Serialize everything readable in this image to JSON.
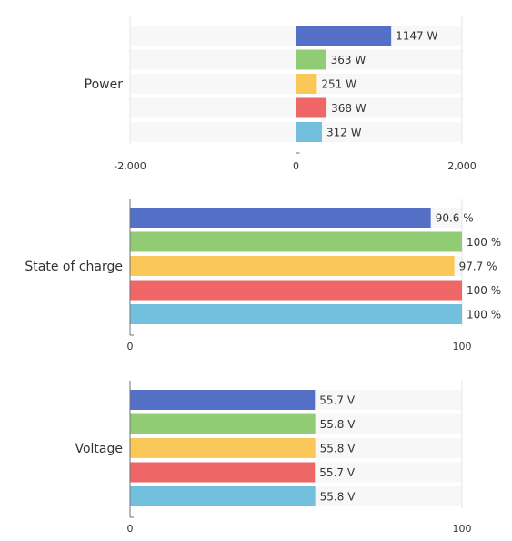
{
  "chart_data": [
    {
      "type": "bar",
      "orientation": "horizontal",
      "category": "Power",
      "unit": "W",
      "values": [
        1147,
        363,
        251,
        368,
        312
      ],
      "labels": [
        "1147 W",
        "363 W",
        "251 W",
        "368 W",
        "312 W"
      ],
      "xlim": [
        -2000,
        2000
      ],
      "ticks": [
        -2000,
        0,
        2000
      ],
      "tick_labels": [
        "-2,000",
        "0",
        "2,000"
      ]
    },
    {
      "type": "bar",
      "orientation": "horizontal",
      "category": "State of charge",
      "unit": "%",
      "values": [
        90.6,
        100,
        97.7,
        100,
        100
      ],
      "labels": [
        "90.6 %",
        "100 %",
        "97.7 %",
        "100 %",
        "100 %"
      ],
      "xlim": [
        0,
        100
      ],
      "ticks": [
        0,
        100
      ],
      "tick_labels": [
        "0",
        "100"
      ]
    },
    {
      "type": "bar",
      "orientation": "horizontal",
      "category": "Voltage",
      "unit": "V",
      "values": [
        55.7,
        55.8,
        55.8,
        55.7,
        55.8
      ],
      "labels": [
        "55.7 V",
        "55.8 V",
        "55.8 V",
        "55.7 V",
        "55.8 V"
      ],
      "xlim": [
        0,
        100
      ],
      "ticks": [
        0,
        100
      ],
      "tick_labels": [
        "0",
        "100"
      ]
    }
  ],
  "colors": [
    "#5470c6",
    "#91cc75",
    "#fac858",
    "#ee6666",
    "#73c0de"
  ],
  "grid": true
}
